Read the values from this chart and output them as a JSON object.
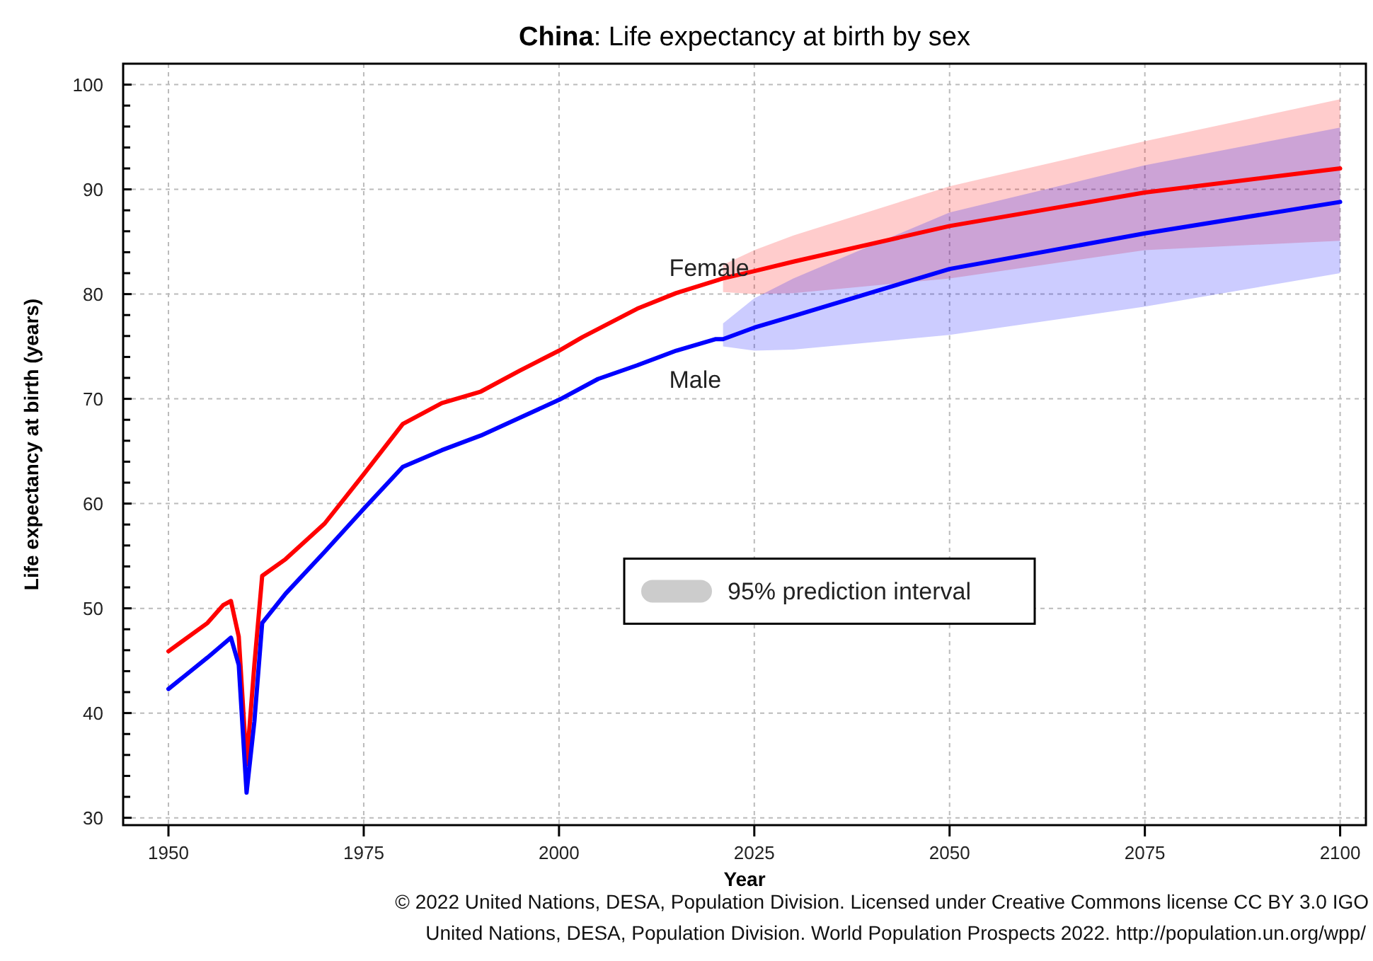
{
  "chart_data": {
    "type": "line",
    "title": "China: Life expectancy at birth by sex",
    "xlabel": "Year",
    "ylabel": "Life expectancy at birth (years)",
    "legend_title": "95% prediction interval",
    "legend": "right",
    "grid": true,
    "line_style": "solid",
    "marker": "none",
    "xlim": [
      1944.2,
      2103.3
    ],
    "xticks": [
      1950,
      1975,
      2000,
      2025,
      2050,
      2075,
      2100
    ],
    "ylim": [
      29.3,
      102
    ],
    "yticks": [
      30,
      {
        "value": 32,
        "label": null
      },
      {
        "value": 34,
        "label": null
      },
      {
        "value": 36,
        "label": null
      },
      {
        "value": 38,
        "label": null
      },
      40,
      {
        "value": 42,
        "label": null
      },
      {
        "value": 44,
        "label": null
      },
      {
        "value": 46,
        "label": null
      },
      {
        "value": 48,
        "label": null
      },
      50,
      {
        "value": 52,
        "label": null
      },
      {
        "value": 54,
        "label": null
      },
      {
        "value": 56,
        "label": null
      },
      {
        "value": 58,
        "label": null
      },
      60,
      {
        "value": 62,
        "label": null
      },
      {
        "value": 64,
        "label": null
      },
      {
        "value": 66,
        "label": null
      },
      {
        "value": 68,
        "label": null
      },
      70,
      {
        "value": 72,
        "label": null
      },
      {
        "value": 74,
        "label": null
      },
      {
        "value": 76,
        "label": null
      },
      {
        "value": 78,
        "label": null
      },
      80,
      {
        "value": 82,
        "label": null
      },
      {
        "value": 84,
        "label": null
      },
      {
        "value": 86,
        "label": null
      },
      {
        "value": 88,
        "label": null
      },
      90,
      {
        "value": 92,
        "label": null
      },
      {
        "value": 94,
        "label": null
      },
      {
        "value": 96,
        "label": null
      },
      {
        "value": 98,
        "label": null
      },
      100
    ],
    "series": [
      {
        "name": "Female",
        "color": "#ff0000",
        "x": [
          1950,
          1955,
          1957,
          1958,
          1959,
          1960,
          1961,
          1962,
          1965,
          1970,
          1975,
          1980,
          1985,
          1990,
          1995,
          2000,
          2003,
          2010,
          2015,
          2021,
          2025,
          2030,
          2050,
          2075,
          2100
        ],
        "values": [
          45.9,
          48.6,
          50.3,
          50.7,
          47.3,
          35.1,
          44.6,
          53.1,
          54.7,
          58.1,
          62.8,
          67.6,
          69.6,
          70.7,
          72.7,
          74.6,
          75.9,
          78.6,
          80.1,
          81.5,
          82.2,
          83.1,
          86.5,
          89.7,
          92.0
        ],
        "lower": [
          null,
          null,
          null,
          null,
          null,
          null,
          null,
          null,
          null,
          null,
          null,
          null,
          null,
          null,
          null,
          null,
          null,
          null,
          null,
          80.2,
          80.0,
          80.1,
          81.5,
          84.2,
          85.1
        ],
        "upper": [
          null,
          null,
          null,
          null,
          null,
          null,
          null,
          null,
          null,
          null,
          null,
          null,
          null,
          null,
          null,
          null,
          null,
          null,
          null,
          82.8,
          84.2,
          85.6,
          90.3,
          94.6,
          98.6
        ]
      },
      {
        "name": "Male",
        "color": "#0000ff",
        "x": [
          1950,
          1955,
          1958,
          1959,
          1960,
          1961,
          1962,
          1965,
          1970,
          1975,
          1980,
          1985,
          1990,
          1995,
          2000,
          2005,
          2010,
          2015,
          2020,
          2021,
          2025,
          2030,
          2050,
          2075,
          2100
        ],
        "values": [
          42.3,
          45.3,
          47.2,
          44.6,
          32.4,
          39.2,
          48.6,
          51.4,
          55.4,
          59.5,
          63.5,
          65.1,
          66.5,
          68.2,
          69.9,
          71.9,
          73.2,
          74.6,
          75.7,
          75.7,
          76.8,
          77.9,
          82.4,
          85.8,
          88.8
        ],
        "lower": [
          null,
          null,
          null,
          null,
          null,
          null,
          null,
          null,
          null,
          null,
          null,
          null,
          null,
          null,
          null,
          null,
          null,
          null,
          null,
          75.0,
          74.6,
          74.7,
          76.1,
          78.8,
          82.0
        ],
        "upper": [
          null,
          null,
          null,
          null,
          null,
          null,
          null,
          null,
          null,
          null,
          null,
          null,
          null,
          null,
          null,
          null,
          null,
          null,
          null,
          77.2,
          79.6,
          81.5,
          87.8,
          92.3,
          95.9
        ]
      }
    ],
    "annotations": [
      "© 2022 United Nations, DESA, Population Division. Licensed under Creative Commons license CC BY 3.0 IGO",
      "United Nations, DESA, Population Division. World Population Prospects 2022. http://population.un.org/wpp/"
    ]
  }
}
